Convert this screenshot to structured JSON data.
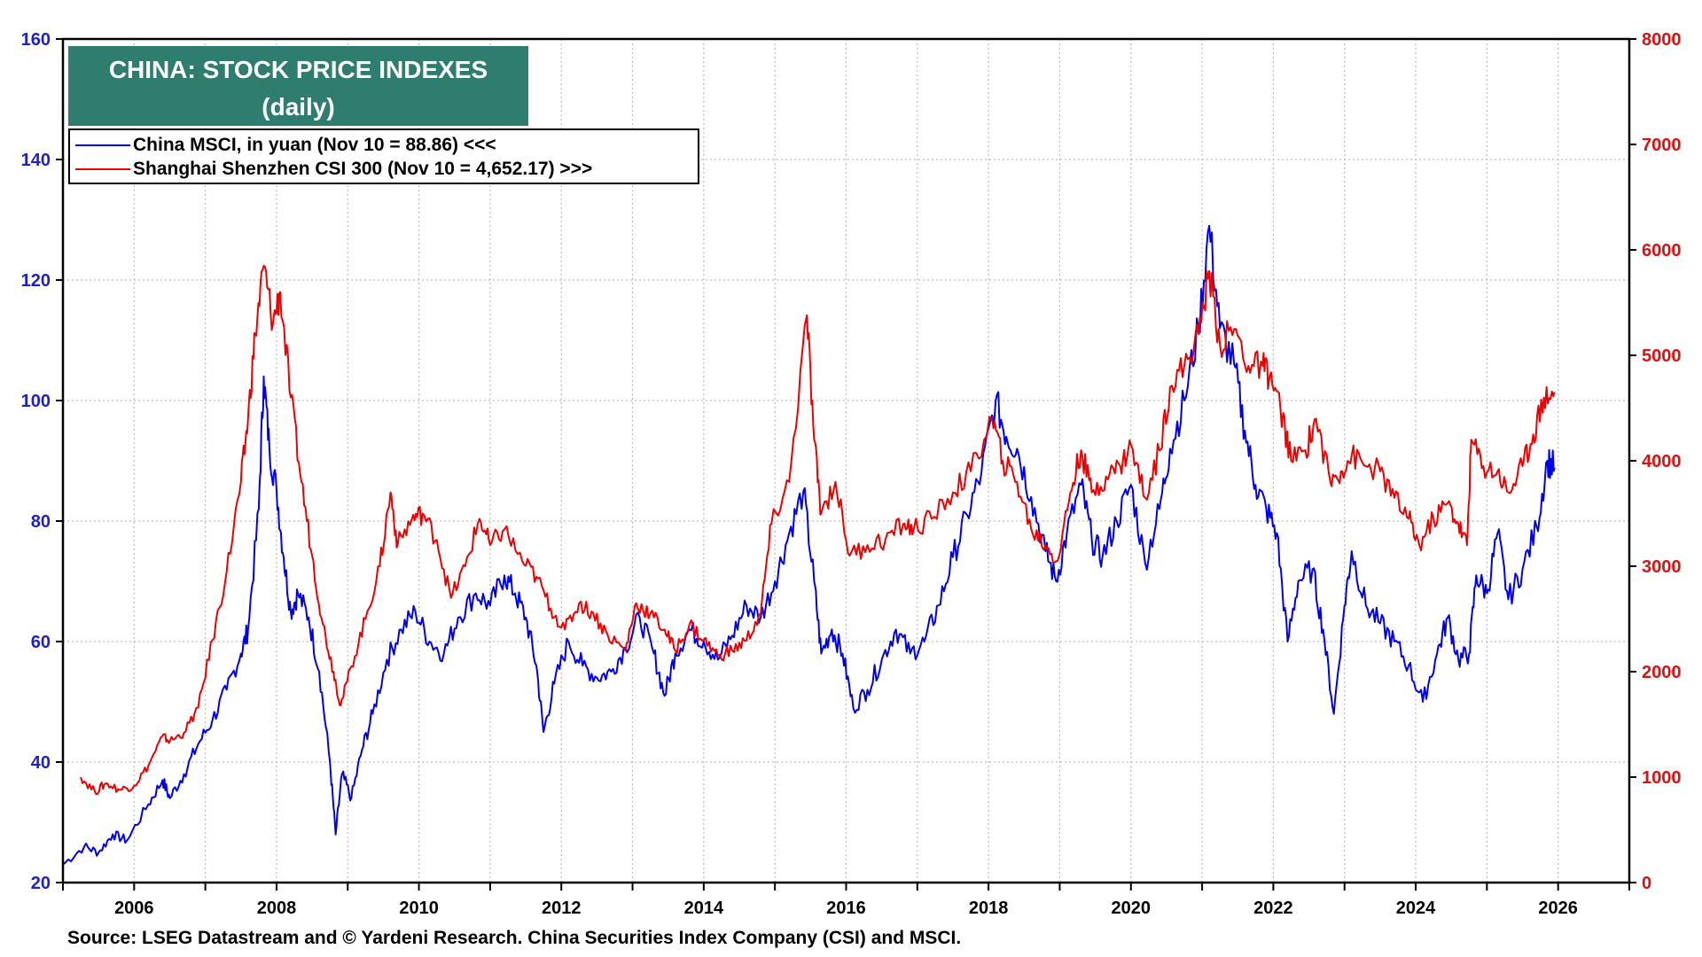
{
  "title": {
    "line1": "CHINA: STOCK PRICE INDEXES",
    "line2": "(daily)",
    "box_color": "#2e7d6f"
  },
  "legend": [
    {
      "label": "China MSCI, in yuan (Nov 10 = 88.86) <<<",
      "color": "#0000ee"
    },
    {
      "label": "Shanghai Shenzhen CSI 300 (Nov 10 = 4,652.17) >>>",
      "color": "#ee0000"
    }
  ],
  "source": "Source: LSEG Datastream and © Yardeni Research. China Securities Index Company (CSI) and MSCI.",
  "chart_data": {
    "type": "line",
    "title": "CHINA: STOCK PRICE INDEXES",
    "subtitle": "(daily)",
    "grid": true,
    "x_ticks": [
      "2006",
      "2008",
      "2010",
      "2012",
      "2014",
      "2016",
      "2018",
      "2020",
      "2022",
      "2024",
      "2026"
    ],
    "xlim": [
      2005.0,
      2027.0
    ],
    "y_left": {
      "ticks": [
        "20",
        "40",
        "60",
        "80",
        "100",
        "120",
        "140",
        "160"
      ],
      "ylim": [
        20,
        160
      ],
      "color": "#0000ee"
    },
    "y_right": {
      "ticks": [
        "0",
        "1000",
        "2000",
        "3000",
        "4000",
        "5000",
        "6000",
        "7000",
        "8000"
      ],
      "ylim": [
        0,
        8000
      ],
      "color": "#ee0000"
    },
    "series": [
      {
        "name": "China MSCI, in yuan (Nov 10 = 88.86) <<<",
        "axis": "left",
        "color": "#0000ee",
        "points": [
          [
            2005.0,
            23
          ],
          [
            2005.3,
            26
          ],
          [
            2005.5,
            25
          ],
          [
            2005.7,
            28
          ],
          [
            2005.9,
            27
          ],
          [
            2006.2,
            33
          ],
          [
            2006.4,
            37
          ],
          [
            2006.5,
            34
          ],
          [
            2006.7,
            38
          ],
          [
            2006.9,
            43
          ],
          [
            2007.1,
            47
          ],
          [
            2007.3,
            52
          ],
          [
            2007.5,
            58
          ],
          [
            2007.6,
            62
          ],
          [
            2007.75,
            82
          ],
          [
            2007.82,
            104
          ],
          [
            2007.9,
            92
          ],
          [
            2008.0,
            85
          ],
          [
            2008.1,
            74
          ],
          [
            2008.2,
            65
          ],
          [
            2008.3,
            68
          ],
          [
            2008.45,
            64
          ],
          [
            2008.6,
            55
          ],
          [
            2008.75,
            40
          ],
          [
            2008.83,
            28
          ],
          [
            2008.92,
            38
          ],
          [
            2009.05,
            34
          ],
          [
            2009.2,
            42
          ],
          [
            2009.35,
            48
          ],
          [
            2009.55,
            57
          ],
          [
            2009.75,
            62
          ],
          [
            2009.95,
            65
          ],
          [
            2010.15,
            60
          ],
          [
            2010.35,
            58
          ],
          [
            2010.55,
            64
          ],
          [
            2010.8,
            68
          ],
          [
            2011.0,
            66
          ],
          [
            2011.2,
            71
          ],
          [
            2011.35,
            68
          ],
          [
            2011.5,
            64
          ],
          [
            2011.65,
            56
          ],
          [
            2011.75,
            45
          ],
          [
            2011.9,
            53
          ],
          [
            2012.1,
            60
          ],
          [
            2012.3,
            56
          ],
          [
            2012.5,
            54
          ],
          [
            2012.7,
            55
          ],
          [
            2012.9,
            59
          ],
          [
            2013.1,
            64
          ],
          [
            2013.3,
            58
          ],
          [
            2013.45,
            51
          ],
          [
            2013.6,
            58
          ],
          [
            2013.8,
            62
          ],
          [
            2014.0,
            60
          ],
          [
            2014.2,
            57
          ],
          [
            2014.4,
            61
          ],
          [
            2014.6,
            66
          ],
          [
            2014.8,
            64
          ],
          [
            2015.0,
            70
          ],
          [
            2015.2,
            78
          ],
          [
            2015.4,
            85
          ],
          [
            2015.55,
            70
          ],
          [
            2015.65,
            58
          ],
          [
            2015.8,
            62
          ],
          [
            2015.95,
            58
          ],
          [
            2016.1,
            49
          ],
          [
            2016.3,
            52
          ],
          [
            2016.5,
            57
          ],
          [
            2016.7,
            62
          ],
          [
            2016.9,
            58
          ],
          [
            2017.1,
            60
          ],
          [
            2017.3,
            66
          ],
          [
            2017.5,
            74
          ],
          [
            2017.7,
            81
          ],
          [
            2017.9,
            88
          ],
          [
            2018.1,
            100
          ],
          [
            2018.25,
            94
          ],
          [
            2018.4,
            92
          ],
          [
            2018.6,
            84
          ],
          [
            2018.8,
            75
          ],
          [
            2018.95,
            70
          ],
          [
            2019.1,
            78
          ],
          [
            2019.3,
            86
          ],
          [
            2019.45,
            77
          ],
          [
            2019.6,
            74
          ],
          [
            2019.8,
            80
          ],
          [
            2020.0,
            86
          ],
          [
            2020.2,
            73
          ],
          [
            2020.4,
            82
          ],
          [
            2020.55,
            92
          ],
          [
            2020.75,
            100
          ],
          [
            2020.95,
            112
          ],
          [
            2021.1,
            129
          ],
          [
            2021.25,
            112
          ],
          [
            2021.45,
            106
          ],
          [
            2021.6,
            95
          ],
          [
            2021.75,
            86
          ],
          [
            2021.9,
            82
          ],
          [
            2022.05,
            78
          ],
          [
            2022.2,
            60
          ],
          [
            2022.35,
            70
          ],
          [
            2022.55,
            72
          ],
          [
            2022.7,
            62
          ],
          [
            2022.85,
            48
          ],
          [
            2023.0,
            66
          ],
          [
            2023.1,
            75
          ],
          [
            2023.3,
            66
          ],
          [
            2023.5,
            63
          ],
          [
            2023.7,
            60
          ],
          [
            2023.9,
            56
          ],
          [
            2024.1,
            50
          ],
          [
            2024.3,
            58
          ],
          [
            2024.45,
            64
          ],
          [
            2024.6,
            57
          ],
          [
            2024.75,
            58
          ],
          [
            2024.85,
            71
          ],
          [
            2025.0,
            68
          ],
          [
            2025.15,
            78
          ],
          [
            2025.3,
            67
          ],
          [
            2025.5,
            72
          ],
          [
            2025.7,
            79
          ],
          [
            2025.85,
            90
          ],
          [
            2025.95,
            88.86
          ]
        ]
      },
      {
        "name": "Shanghai Shenzhen CSI 300 (Nov 10 = 4,652.17) >>>",
        "axis": "right",
        "color": "#ee0000",
        "points": [
          [
            2005.25,
            1000
          ],
          [
            2005.45,
            860
          ],
          [
            2005.6,
            940
          ],
          [
            2005.8,
            880
          ],
          [
            2006.0,
            920
          ],
          [
            2006.2,
            1110
          ],
          [
            2006.4,
            1390
          ],
          [
            2006.5,
            1340
          ],
          [
            2006.7,
            1420
          ],
          [
            2006.9,
            1660
          ],
          [
            2007.1,
            2300
          ],
          [
            2007.3,
            2950
          ],
          [
            2007.5,
            3800
          ],
          [
            2007.6,
            4400
          ],
          [
            2007.7,
            5200
          ],
          [
            2007.82,
            5850
          ],
          [
            2007.95,
            5300
          ],
          [
            2008.05,
            5600
          ],
          [
            2008.2,
            4600
          ],
          [
            2008.35,
            3800
          ],
          [
            2008.5,
            3100
          ],
          [
            2008.65,
            2450
          ],
          [
            2008.8,
            2000
          ],
          [
            2008.9,
            1680
          ],
          [
            2009.05,
            2050
          ],
          [
            2009.25,
            2500
          ],
          [
            2009.45,
            3000
          ],
          [
            2009.6,
            3700
          ],
          [
            2009.7,
            3200
          ],
          [
            2009.9,
            3450
          ],
          [
            2010.05,
            3500
          ],
          [
            2010.25,
            3250
          ],
          [
            2010.45,
            2700
          ],
          [
            2010.65,
            3000
          ],
          [
            2010.85,
            3450
          ],
          [
            2011.0,
            3200
          ],
          [
            2011.2,
            3350
          ],
          [
            2011.45,
            3050
          ],
          [
            2011.65,
            2900
          ],
          [
            2011.85,
            2600
          ],
          [
            2012.05,
            2400
          ],
          [
            2012.25,
            2650
          ],
          [
            2012.45,
            2550
          ],
          [
            2012.65,
            2350
          ],
          [
            2012.9,
            2200
          ],
          [
            2013.05,
            2650
          ],
          [
            2013.25,
            2550
          ],
          [
            2013.45,
            2400
          ],
          [
            2013.6,
            2200
          ],
          [
            2013.8,
            2450
          ],
          [
            2014.0,
            2300
          ],
          [
            2014.2,
            2150
          ],
          [
            2014.4,
            2200
          ],
          [
            2014.6,
            2300
          ],
          [
            2014.8,
            2550
          ],
          [
            2014.95,
            3400
          ],
          [
            2015.2,
            3800
          ],
          [
            2015.45,
            5380
          ],
          [
            2015.55,
            4200
          ],
          [
            2015.65,
            3500
          ],
          [
            2015.85,
            3800
          ],
          [
            2016.05,
            3100
          ],
          [
            2016.3,
            3200
          ],
          [
            2016.55,
            3250
          ],
          [
            2016.8,
            3400
          ],
          [
            2016.95,
            3350
          ],
          [
            2017.2,
            3450
          ],
          [
            2017.5,
            3700
          ],
          [
            2017.75,
            3900
          ],
          [
            2018.05,
            4400
          ],
          [
            2018.2,
            4000
          ],
          [
            2018.4,
            3800
          ],
          [
            2018.6,
            3350
          ],
          [
            2018.8,
            3200
          ],
          [
            2018.97,
            3050
          ],
          [
            2019.15,
            3700
          ],
          [
            2019.3,
            4100
          ],
          [
            2019.45,
            3700
          ],
          [
            2019.65,
            3850
          ],
          [
            2019.85,
            3950
          ],
          [
            2020.0,
            4150
          ],
          [
            2020.2,
            3650
          ],
          [
            2020.4,
            4100
          ],
          [
            2020.55,
            4700
          ],
          [
            2020.75,
            4900
          ],
          [
            2020.95,
            5200
          ],
          [
            2021.1,
            5800
          ],
          [
            2021.25,
            5100
          ],
          [
            2021.45,
            5250
          ],
          [
            2021.65,
            4900
          ],
          [
            2021.85,
            4900
          ],
          [
            2021.95,
            4800
          ],
          [
            2022.1,
            4500
          ],
          [
            2022.25,
            4000
          ],
          [
            2022.45,
            4100
          ],
          [
            2022.6,
            4400
          ],
          [
            2022.8,
            3800
          ],
          [
            2022.95,
            3900
          ],
          [
            2023.1,
            4050
          ],
          [
            2023.3,
            3950
          ],
          [
            2023.5,
            3900
          ],
          [
            2023.7,
            3650
          ],
          [
            2023.9,
            3450
          ],
          [
            2024.05,
            3200
          ],
          [
            2024.25,
            3450
          ],
          [
            2024.45,
            3600
          ],
          [
            2024.6,
            3400
          ],
          [
            2024.72,
            3200
          ],
          [
            2024.78,
            4200
          ],
          [
            2024.95,
            3950
          ],
          [
            2025.15,
            3900
          ],
          [
            2025.3,
            3700
          ],
          [
            2025.5,
            3950
          ],
          [
            2025.65,
            4250
          ],
          [
            2025.8,
            4600
          ],
          [
            2025.95,
            4652.17
          ]
        ]
      }
    ]
  }
}
